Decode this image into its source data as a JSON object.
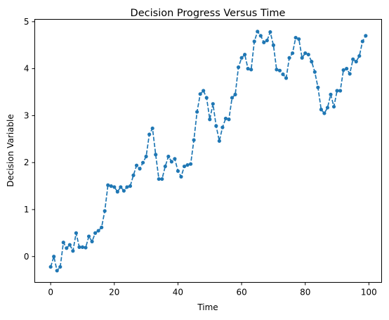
{
  "chart_data": {
    "type": "line",
    "title": "Decision Progress Versus Time",
    "xlabel": "Time",
    "ylabel": "Decision Variable",
    "xlim": [
      -5,
      104
    ],
    "ylim": [
      -0.55,
      5.05
    ],
    "xticks": [
      0,
      20,
      40,
      60,
      80,
      100
    ],
    "yticks": [
      0,
      1,
      2,
      3,
      4,
      5
    ],
    "grid": false,
    "legend": "none",
    "line_style": "dashed",
    "marker": "circle",
    "color": "#1f77b4",
    "series": [
      {
        "x": [
          0,
          1,
          2,
          3,
          4,
          5,
          6,
          7,
          8,
          9,
          10,
          11,
          12,
          13,
          14,
          15,
          16,
          17,
          18,
          19,
          20,
          21,
          22,
          23,
          24,
          25,
          26,
          27,
          28,
          29,
          30,
          31,
          32,
          33,
          34,
          35,
          36,
          37,
          38,
          39,
          40,
          41,
          42,
          43,
          44,
          45,
          46,
          47,
          48,
          49,
          50,
          51,
          52,
          53,
          54,
          55,
          56,
          57,
          58,
          59,
          60,
          61,
          62,
          63,
          64,
          65,
          66,
          67,
          68,
          69,
          70,
          71,
          72,
          73,
          74,
          75,
          76,
          77,
          78,
          79,
          80,
          81,
          82,
          83,
          84,
          85,
          86,
          87,
          88,
          89,
          90,
          91,
          92,
          93,
          94,
          95,
          96,
          97,
          98,
          99
        ],
        "values": [
          -0.22,
          0.0,
          -0.3,
          -0.22,
          0.3,
          0.18,
          0.25,
          0.12,
          0.5,
          0.2,
          0.2,
          0.19,
          0.43,
          0.32,
          0.5,
          0.55,
          0.62,
          0.97,
          1.52,
          1.5,
          1.48,
          1.38,
          1.48,
          1.4,
          1.48,
          1.5,
          1.73,
          1.94,
          1.87,
          2.0,
          2.13,
          2.6,
          2.73,
          2.17,
          1.65,
          1.65,
          1.92,
          2.13,
          2.02,
          2.08,
          1.82,
          1.7,
          1.92,
          1.95,
          1.97,
          2.48,
          3.08,
          3.46,
          3.53,
          3.38,
          2.92,
          3.25,
          2.78,
          2.46,
          2.75,
          2.94,
          2.92,
          3.38,
          3.45,
          4.03,
          4.23,
          4.3,
          4.0,
          3.98,
          4.58,
          4.79,
          4.7,
          4.56,
          4.6,
          4.78,
          4.5,
          3.98,
          3.96,
          3.88,
          3.8,
          4.23,
          4.33,
          4.66,
          4.63,
          4.23,
          4.33,
          4.3,
          4.15,
          3.93,
          3.6,
          3.13,
          3.05,
          3.17,
          3.45,
          3.19,
          3.53,
          3.53,
          3.97,
          4.0,
          3.89,
          4.2,
          4.15,
          4.27,
          4.58,
          4.7
        ]
      }
    ]
  }
}
